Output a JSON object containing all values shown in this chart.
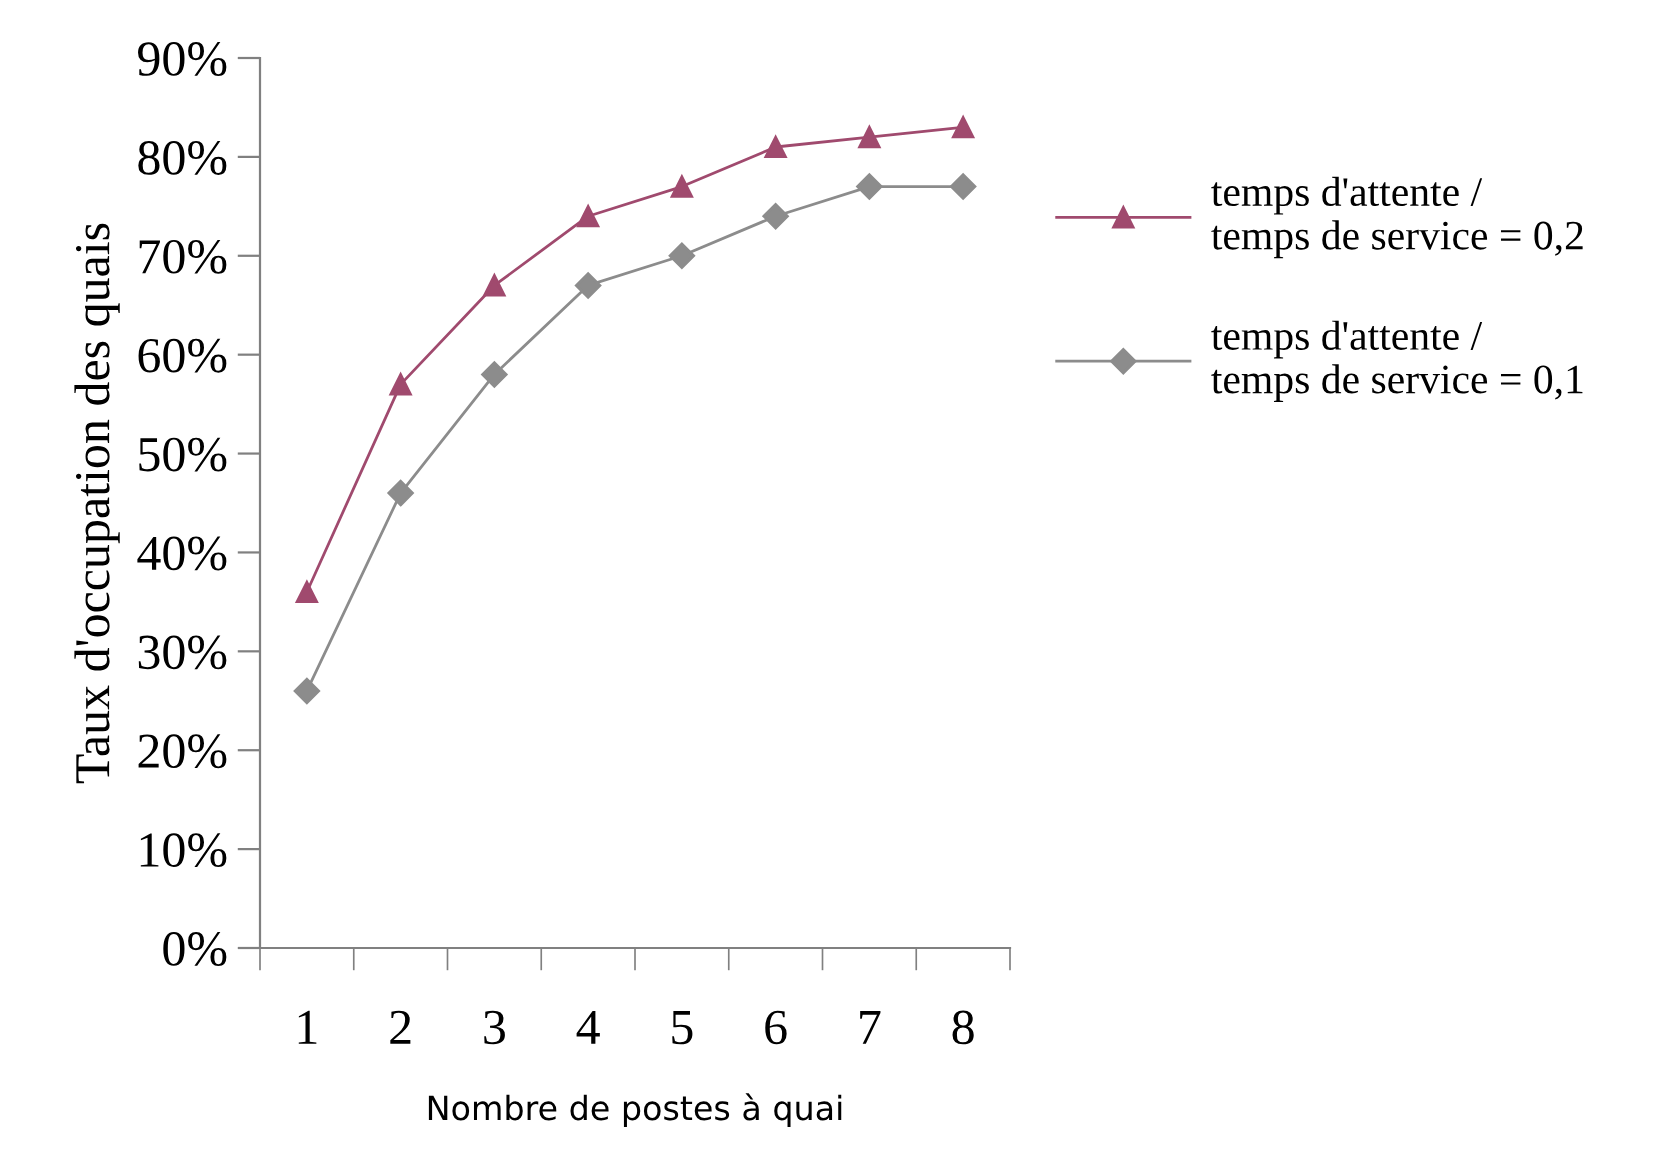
{
  "chart_data": {
    "type": "line",
    "xlabel": "Nombre de postes à quai",
    "ylabel": "Taux d'occupation des quais",
    "categories": [
      "1",
      "2",
      "3",
      "4",
      "5",
      "6",
      "7",
      "8"
    ],
    "series": [
      {
        "name": "temps d'attente /\ntemps de service = 0,2",
        "color": "#a04a6e",
        "marker": "triangle",
        "values": [
          36,
          57,
          67,
          74,
          77,
          81,
          82,
          83
        ]
      },
      {
        "name": "temps d'attente /\ntemps de service = 0,1",
        "color": "#8c8c8c",
        "marker": "diamond",
        "values": [
          26,
          46,
          58,
          67,
          70,
          74,
          77,
          77
        ]
      }
    ],
    "ylim": [
      0,
      90
    ],
    "yticks": [
      {
        "value": 0,
        "label": "0%"
      },
      {
        "value": 10,
        "label": "10%"
      },
      {
        "value": 20,
        "label": "20%"
      },
      {
        "value": 30,
        "label": "30%"
      },
      {
        "value": 40,
        "label": "40%"
      },
      {
        "value": 50,
        "label": "50%"
      },
      {
        "value": 60,
        "label": "60%"
      },
      {
        "value": 70,
        "label": "70%"
      },
      {
        "value": 80,
        "label": "80%"
      },
      {
        "value": 90,
        "label": "90%"
      }
    ],
    "grid": false,
    "legend": "right",
    "line_style": "solid"
  }
}
